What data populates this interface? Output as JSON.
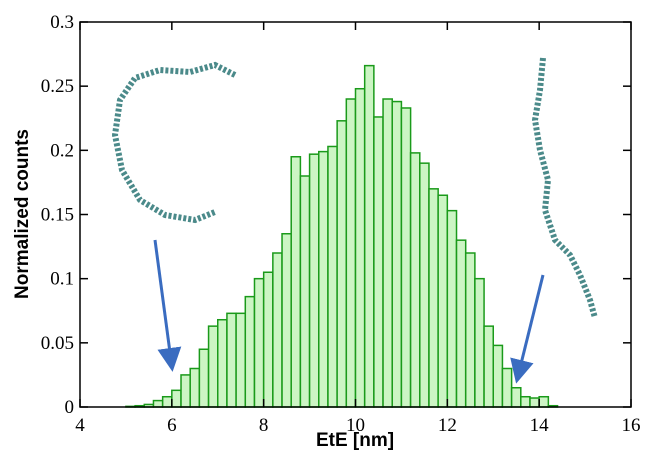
{
  "chart_data": {
    "type": "histogram",
    "xlabel": "EtE [nm]",
    "ylabel": "Normalized counts",
    "bins": [
      5.0,
      5.2,
      5.4,
      5.6,
      5.8,
      6.0,
      6.2,
      6.4,
      6.6,
      6.8,
      7.0,
      7.2,
      7.4,
      7.6,
      7.8,
      8.0,
      8.2,
      8.4,
      8.6,
      8.8,
      9.0,
      9.2,
      9.4,
      9.6,
      9.8,
      10.0,
      10.2,
      10.4,
      10.6,
      10.8,
      11.0,
      11.2,
      11.4,
      11.6,
      11.8,
      12.0,
      12.2,
      12.4,
      12.6,
      12.8,
      13.0,
      13.2,
      13.4,
      13.6,
      13.8,
      14.0,
      14.2,
      14.4
    ],
    "values": [
      0.0005,
      0.001,
      0.002,
      0.005,
      0.008,
      0.013,
      0.025,
      0.03,
      0.045,
      0.063,
      0.068,
      0.073,
      0.073,
      0.086,
      0.1,
      0.105,
      0.12,
      0.135,
      0.195,
      0.18,
      0.197,
      0.199,
      0.203,
      0.223,
      0.24,
      0.248,
      0.266,
      0.226,
      0.24,
      0.238,
      0.233,
      0.198,
      0.19,
      0.17,
      0.165,
      0.153,
      0.13,
      0.12,
      0.1,
      0.063,
      0.048,
      0.03,
      0.015,
      0.008,
      0.007,
      0.008,
      0.001
    ],
    "color": "#ccf5c4",
    "edgecolor": "#1a9a1a",
    "xlim": [
      4,
      16
    ],
    "xticks": [
      4,
      6,
      8,
      10,
      12,
      14,
      16
    ],
    "ylim": [
      0,
      0.3
    ],
    "yticks": [
      0,
      0.05,
      0.1,
      0.15,
      0.2,
      0.25,
      0.3
    ]
  }
}
